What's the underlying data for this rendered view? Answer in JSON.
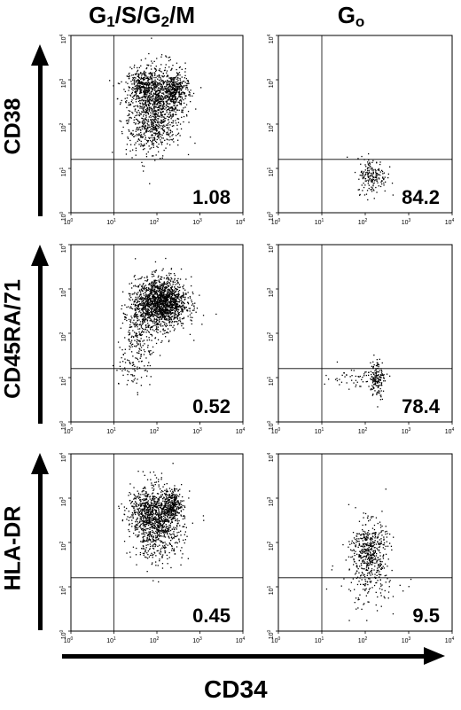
{
  "columns": [
    {
      "main": "G",
      "sub": "1",
      "rest": "/S/G",
      "sub2": "2",
      "tail": "/M"
    },
    {
      "main": "G",
      "sub": "o",
      "rest": "",
      "sub2": "",
      "tail": ""
    }
  ],
  "x_axis_title": "CD34",
  "tick_labels": [
    "10",
    "10",
    "10",
    "10",
    "10"
  ],
  "tick_exponents": [
    "0",
    "1",
    "2",
    "3",
    "4"
  ],
  "chart_data": [
    {
      "type": "scatter",
      "row": "CD38",
      "column": "G1/S/G2/M",
      "percentage": "1.08",
      "xlim": [
        1,
        10000
      ],
      "ylim": [
        1,
        10000
      ],
      "gate": {
        "x": 10,
        "y": 16
      },
      "log_scale": true,
      "clusters": [
        {
          "x": 100,
          "y": 300,
          "n": 900,
          "sx": 0.32,
          "sy": 0.45
        },
        {
          "x": 45,
          "y": 700,
          "n": 300,
          "sx": 0.18,
          "sy": 0.2
        },
        {
          "x": 250,
          "y": 600,
          "n": 300,
          "sx": 0.15,
          "sy": 0.18
        },
        {
          "x": 60,
          "y": 80,
          "n": 250,
          "sx": 0.25,
          "sy": 0.35
        }
      ]
    },
    {
      "type": "scatter",
      "row": "CD38",
      "column": "Go",
      "percentage": "84.2",
      "xlim": [
        1,
        10000
      ],
      "ylim": [
        1,
        10000
      ],
      "gate": {
        "x": 10,
        "y": 16
      },
      "log_scale": true,
      "clusters": [
        {
          "x": 140,
          "y": 7,
          "n": 180,
          "sx": 0.17,
          "sy": 0.2
        }
      ]
    },
    {
      "type": "scatter",
      "row": "CD45RA/71",
      "column": "G1/S/G2/M",
      "percentage": "0.52",
      "xlim": [
        1,
        10000
      ],
      "ylim": [
        1,
        10000
      ],
      "gate": {
        "x": 10,
        "y": 16
      },
      "log_scale": true,
      "clusters": [
        {
          "x": 120,
          "y": 500,
          "n": 1600,
          "sx": 0.3,
          "sy": 0.28
        },
        {
          "x": 40,
          "y": 120,
          "n": 250,
          "sx": 0.2,
          "sy": 0.4
        },
        {
          "x": 25,
          "y": 18,
          "n": 60,
          "sx": 0.2,
          "sy": 0.25
        }
      ]
    },
    {
      "type": "scatter",
      "row": "CD45RA/71",
      "column": "Go",
      "percentage": "78.4",
      "xlim": [
        1,
        10000
      ],
      "ylim": [
        1,
        10000
      ],
      "gate": {
        "x": 10,
        "y": 16
      },
      "log_scale": true,
      "clusters": [
        {
          "x": 180,
          "y": 10,
          "n": 150,
          "sx": 0.08,
          "sy": 0.22
        },
        {
          "x": 60,
          "y": 10,
          "n": 60,
          "sx": 0.35,
          "sy": 0.12
        }
      ]
    },
    {
      "type": "scatter",
      "row": "HLA-DR",
      "column": "G1/S/G2/M",
      "percentage": "0.45",
      "xlim": [
        1,
        10000
      ],
      "ylim": [
        1,
        10000
      ],
      "gate": {
        "x": 10,
        "y": 16
      },
      "log_scale": true,
      "clusters": [
        {
          "x": 100,
          "y": 300,
          "n": 1000,
          "sx": 0.3,
          "sy": 0.4
        },
        {
          "x": 220,
          "y": 700,
          "n": 250,
          "sx": 0.12,
          "sy": 0.15
        },
        {
          "x": 45,
          "y": 600,
          "n": 200,
          "sx": 0.18,
          "sy": 0.2
        }
      ]
    },
    {
      "type": "scatter",
      "row": "HLA-DR",
      "column": "Go",
      "percentage": "9.5",
      "xlim": [
        1,
        10000
      ],
      "ylim": [
        1,
        10000
      ],
      "gate": {
        "x": 10,
        "y": 16
      },
      "log_scale": true,
      "clusters": [
        {
          "x": 120,
          "y": 70,
          "n": 450,
          "sx": 0.2,
          "sy": 0.32
        },
        {
          "x": 120,
          "y": 12,
          "n": 120,
          "sx": 0.35,
          "sy": 0.3
        }
      ]
    }
  ]
}
